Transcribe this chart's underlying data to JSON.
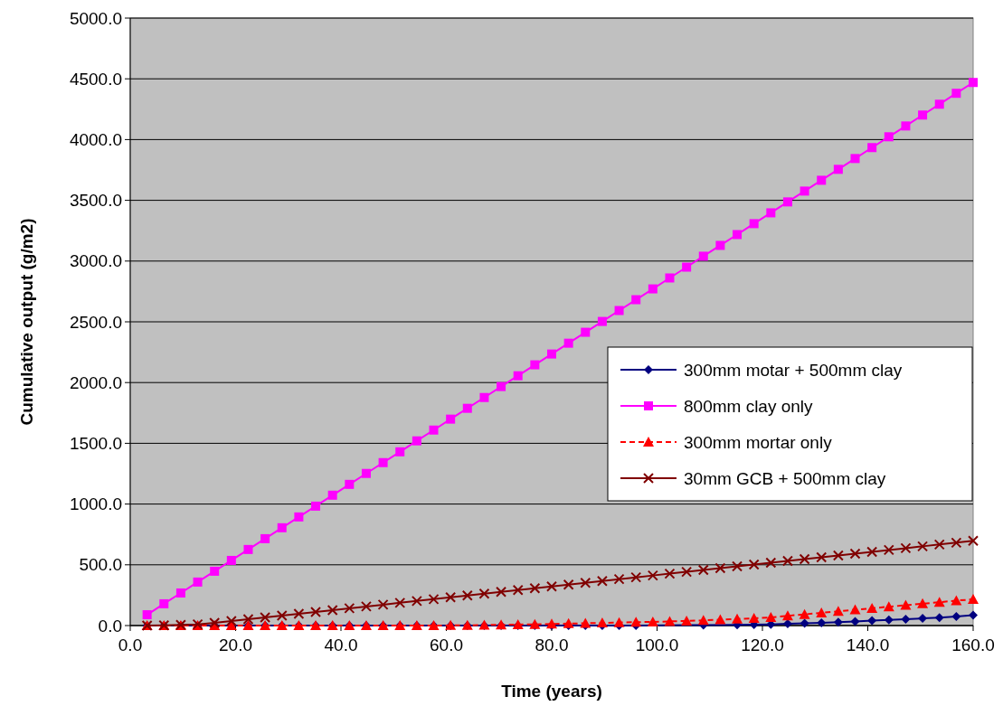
{
  "chart_data": {
    "type": "line",
    "xlabel": "Time (years)",
    "ylabel": "Cumulative output (g/m2)",
    "x": [
      3.2,
      6.4,
      9.6,
      12.8,
      16,
      19.2,
      22.4,
      25.6,
      28.8,
      32,
      35.2,
      38.4,
      41.6,
      44.8,
      48,
      51.2,
      54.4,
      57.6,
      60.8,
      64,
      67.2,
      70.4,
      73.6,
      76.8,
      80,
      83.2,
      86.4,
      89.6,
      92.8,
      96,
      99.2,
      102.4,
      105.6,
      108.8,
      112,
      115.2,
      118.4,
      121.6,
      124.8,
      128,
      131.2,
      134.4,
      137.6,
      140.8,
      144,
      147.2,
      150.4,
      153.6,
      156.8,
      160
    ],
    "xlim": [
      0,
      160
    ],
    "xticks": [
      {
        "value": 0,
        "label": "0.0"
      },
      {
        "value": 20,
        "label": "20.0"
      },
      {
        "value": 40,
        "label": "40.0"
      },
      {
        "value": 60,
        "label": "60.0"
      },
      {
        "value": 80,
        "label": "80.0"
      },
      {
        "value": 100,
        "label": "100.0"
      },
      {
        "value": 120,
        "label": "120.0"
      },
      {
        "value": 140,
        "label": "140.0"
      },
      {
        "value": 160,
        "label": "160.0"
      }
    ],
    "ylim": [
      0,
      5000
    ],
    "yticks": [
      {
        "value": 0,
        "label": "0.0"
      },
      {
        "value": 500,
        "label": "500.0"
      },
      {
        "value": 1000,
        "label": "1000.0"
      },
      {
        "value": 1500,
        "label": "1500.0"
      },
      {
        "value": 2000,
        "label": "2000.0"
      },
      {
        "value": 2500,
        "label": "2500.0"
      },
      {
        "value": 3000,
        "label": "3000.0"
      },
      {
        "value": 3500,
        "label": "3500.0"
      },
      {
        "value": 4000,
        "label": "4000.0"
      },
      {
        "value": 4500,
        "label": "4500.0"
      },
      {
        "value": 5000,
        "label": "5000.0"
      }
    ],
    "grid": "y",
    "legend": "right",
    "series": [
      {
        "name": "300mm motar + 500mm clay",
        "color": "#000080",
        "marker": "diamond",
        "line_style": "solid",
        "values": [
          0,
          0,
          0,
          0,
          0,
          0,
          0,
          0,
          0,
          0,
          0,
          0,
          0,
          0,
          0,
          0,
          0,
          0,
          0,
          0,
          0,
          0,
          0,
          0,
          0,
          0,
          0,
          0,
          0,
          0,
          null,
          null,
          null,
          4,
          null,
          6,
          8,
          10,
          14,
          18,
          23,
          28,
          34,
          40,
          46,
          52,
          59,
          66,
          75,
          85
        ]
      },
      {
        "name": "800mm clay only",
        "color": "#ff00ff",
        "marker": "square",
        "line_style": "solid",
        "values": [
          89,
          179,
          268,
          358,
          447,
          536,
          626,
          715,
          805,
          894,
          983,
          1073,
          1162,
          1252,
          1341,
          1430,
          1520,
          1609,
          1699,
          1788,
          1877,
          1967,
          2056,
          2146,
          2235,
          2324,
          2414,
          2503,
          2593,
          2682,
          2771,
          2861,
          2950,
          3040,
          3129,
          3218,
          3308,
          3397,
          3487,
          3576,
          3665,
          3755,
          3844,
          3934,
          4023,
          4112,
          4202,
          4291,
          4381,
          4470
        ]
      },
      {
        "name": "300mm mortar only",
        "color": "#ff0000",
        "marker": "triangle",
        "line_style": "dashed",
        "values": [
          0,
          0,
          0,
          0,
          0,
          0,
          0,
          0,
          0,
          0,
          0,
          0,
          0,
          0,
          0,
          0,
          0,
          0,
          1,
          2,
          4,
          6,
          8,
          10,
          13,
          16,
          19,
          22,
          25,
          28,
          30,
          34,
          38,
          43,
          48,
          54,
          60,
          67,
          80,
          92,
          105,
          117,
          130,
          142,
          155,
          167,
          180,
          192,
          205,
          216
        ]
      },
      {
        "name": "30mm GCB + 500mm clay",
        "color": "#800000",
        "marker": "cross",
        "line_style": "solid",
        "values": [
          0,
          2,
          5,
          10,
          22,
          37,
          52,
          67,
          82,
          97,
          112,
          127,
          142,
          157,
          172,
          187,
          202,
          217,
          232,
          247,
          262,
          277,
          292,
          307,
          322,
          337,
          352,
          367,
          382,
          397,
          412,
          427,
          442,
          457,
          472,
          487,
          502,
          517,
          532,
          547,
          562,
          577,
          592,
          607,
          622,
          637,
          652,
          667,
          682,
          697
        ]
      }
    ]
  }
}
